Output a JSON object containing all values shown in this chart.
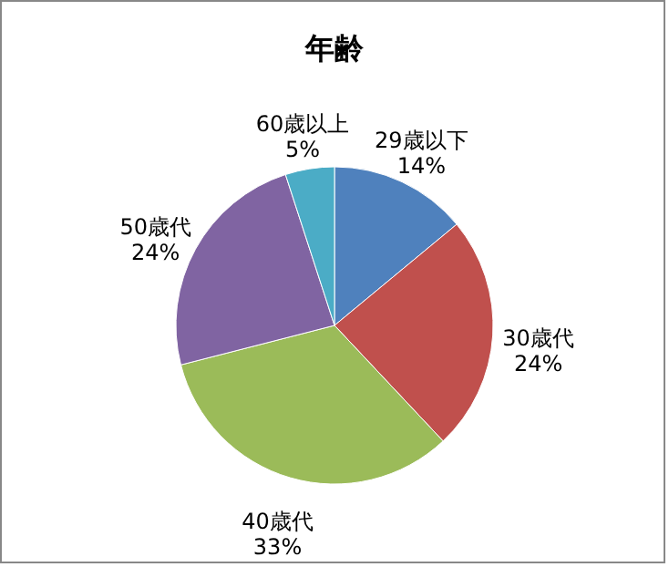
{
  "chart_data": {
    "type": "pie",
    "title": "年齢",
    "categories": [
      "29歳以下",
      "30歳代",
      "40歳代",
      "50歳代",
      "60歳以上"
    ],
    "values": [
      14,
      24,
      33,
      24,
      5
    ],
    "value_labels": [
      "14%",
      "24%",
      "33%",
      "24%",
      "5%"
    ],
    "colors": [
      "#4f81bd",
      "#c0504d",
      "#9bbb59",
      "#8064a2",
      "#4bacc6"
    ],
    "legend": false
  }
}
